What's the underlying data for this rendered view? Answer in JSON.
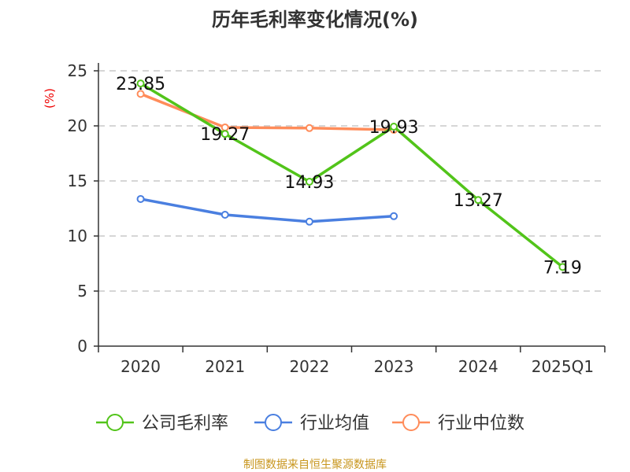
{
  "chart_data": {
    "type": "line",
    "title": "历年毛利率变化情况(%)",
    "ylabel": "(%)",
    "xlabel": "",
    "ylim": [
      0,
      25
    ],
    "yticks": [
      0,
      5,
      10,
      15,
      20,
      25
    ],
    "grid": true,
    "legend_position": "bottom",
    "categories": [
      "2020",
      "2021",
      "2022",
      "2023",
      "2024",
      "2025Q1"
    ],
    "series": [
      {
        "name": "公司毛利率",
        "color": "#52c41a",
        "values": [
          23.85,
          19.27,
          14.93,
          19.93,
          13.27,
          7.19
        ],
        "labels": [
          "23.85",
          "19.27",
          "14.93",
          "19.93",
          "13.27",
          "7.19"
        ]
      },
      {
        "name": "行业均值",
        "color": "#4a7fe0",
        "values": [
          13.36,
          11.93,
          11.3,
          11.8,
          null,
          null
        ]
      },
      {
        "name": "行业中位数",
        "color": "#ff8c5a",
        "values": [
          22.9,
          19.86,
          19.8,
          19.64,
          null,
          null
        ]
      }
    ]
  },
  "footer": {
    "source": "制图数据来自恒生聚源数据库"
  }
}
